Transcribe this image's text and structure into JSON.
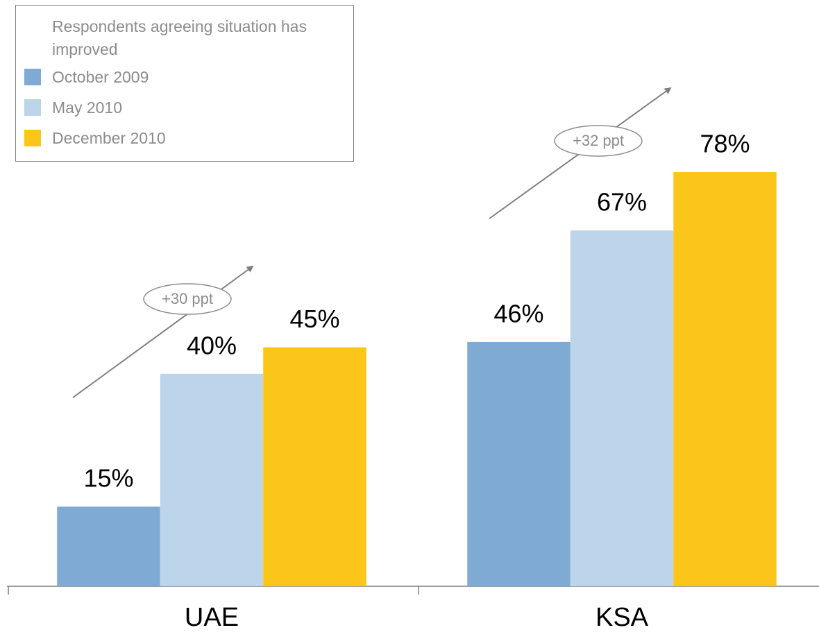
{
  "chart_data": {
    "type": "bar",
    "categories": [
      "UAE",
      "KSA"
    ],
    "legend_title": "Respondents agreeing situation has improved",
    "series": [
      {
        "name": "October 2009",
        "color": "#7eaad3",
        "values": [
          15,
          46
        ],
        "value_labels": [
          "15%",
          "46%"
        ]
      },
      {
        "name": "May 2010",
        "color": "#bdd5ea",
        "values": [
          40,
          67
        ],
        "value_labels": [
          "40%",
          "67%"
        ]
      },
      {
        "name": "December 2010",
        "color": "#fcc519",
        "values": [
          45,
          78
        ],
        "value_labels": [
          "45%",
          "78%"
        ]
      }
    ],
    "annotations": [
      "+30 ppt",
      "+32 ppt"
    ],
    "legend": "top-left"
  }
}
